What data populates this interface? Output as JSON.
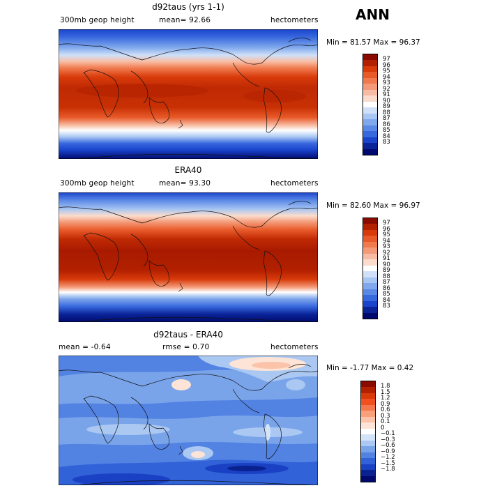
{
  "season": "ANN",
  "panels": [
    {
      "title": "d92taus (yrs 1-1)",
      "left_label": "300mb geop height",
      "center_label": "mean=  92.66",
      "units": "hectometers",
      "minmax": "Min =  81.57 Max =  96.37",
      "colorbar_labels": [
        "97",
        "96",
        "95",
        "94",
        "93",
        "92",
        "91",
        "90",
        "89",
        "88",
        "87",
        "86",
        "85",
        "84",
        "83"
      ],
      "colorbar_colors": [
        "#8b0a00",
        "#b22000",
        "#d83a0a",
        "#e85a2a",
        "#f07a4e",
        "#f49a78",
        "#f8bca4",
        "#fbdccc",
        "#ffffff",
        "#cfe0f8",
        "#a8c6f2",
        "#80a8ec",
        "#5a88e6",
        "#3868de",
        "#1a44cc",
        "#0a2498",
        "#000a6e"
      ]
    },
    {
      "title": "ERA40",
      "left_label": "300mb geop height",
      "center_label": "mean=  93.30",
      "units": "hectometers",
      "minmax": "Min =  82.60 Max =  96.97",
      "colorbar_labels": [
        "97",
        "96",
        "95",
        "94",
        "93",
        "92",
        "91",
        "90",
        "89",
        "88",
        "87",
        "86",
        "85",
        "84",
        "83"
      ],
      "colorbar_colors": [
        "#8b0a00",
        "#b22000",
        "#d83a0a",
        "#e85a2a",
        "#f07a4e",
        "#f49a78",
        "#f8bca4",
        "#fbdccc",
        "#ffffff",
        "#cfe0f8",
        "#a8c6f2",
        "#80a8ec",
        "#5a88e6",
        "#3868de",
        "#1a44cc",
        "#0a2498",
        "#000a6e"
      ]
    },
    {
      "title": "d92taus - ERA40",
      "left_label": "mean =   -0.64",
      "center_label": "rmse =    0.70",
      "units": "hectometers",
      "minmax": "Min =  -1.77 Max =    0.42",
      "colorbar_labels": [
        "1.8",
        "1.5",
        "1.2",
        "0.9",
        "0.6",
        "0.3",
        "0.1",
        "0",
        "−0.1",
        "−0.3",
        "−0.6",
        "−0.9",
        "−1.2",
        "−1.5",
        "−1.8"
      ],
      "colorbar_colors": [
        "#8b0a00",
        "#b22000",
        "#d83a0a",
        "#f0501e",
        "#f4784c",
        "#f8a07a",
        "#fbc4aa",
        "#fde4d6",
        "#ffffff",
        "#d4e4f8",
        "#aac8f2",
        "#7aa4ea",
        "#5282e2",
        "#3262d8",
        "#1a40c4",
        "#0a2290",
        "#000a6e"
      ]
    }
  ]
}
